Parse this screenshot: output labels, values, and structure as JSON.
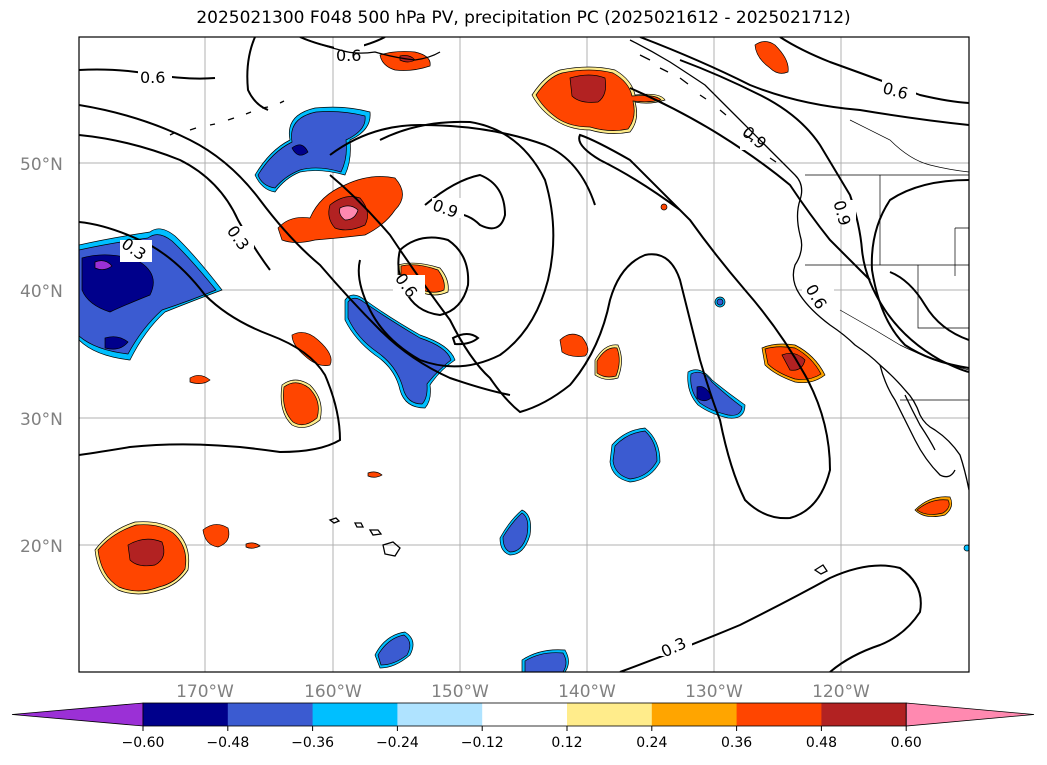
{
  "title": "2025021300 F048 500 hPa PV, precipitation PC (2025021612 - 2025021712)",
  "map": {
    "lat_labels": [
      "50°N",
      "40°N",
      "30°N",
      "20°N"
    ],
    "lon_labels": [
      "170°W",
      "160°W",
      "150°W",
      "140°W",
      "130°W",
      "120°W"
    ],
    "contour_labels": [
      "0.6",
      "0.6",
      "0.6",
      "0.3",
      "0.3",
      "0.9",
      "0.9",
      "0.6",
      "0.6",
      "0.9",
      "0.3"
    ],
    "contour_color": "#000000",
    "coastline_color": "#000000",
    "grid_color": "#b0b0b0"
  },
  "colorbar": {
    "ticks": [
      "−0.60",
      "−0.48",
      "−0.36",
      "−0.24",
      "−0.12",
      "0.12",
      "0.24",
      "0.36",
      "0.48",
      "0.60"
    ],
    "colors": [
      "#9b30d6",
      "#00008b",
      "#3b5bd1",
      "#00bfff",
      "#afe3ff",
      "#ffffff",
      "#ffec8b",
      "#ffa500",
      "#ff4500",
      "#b22222",
      "#ff89b0"
    ]
  }
}
